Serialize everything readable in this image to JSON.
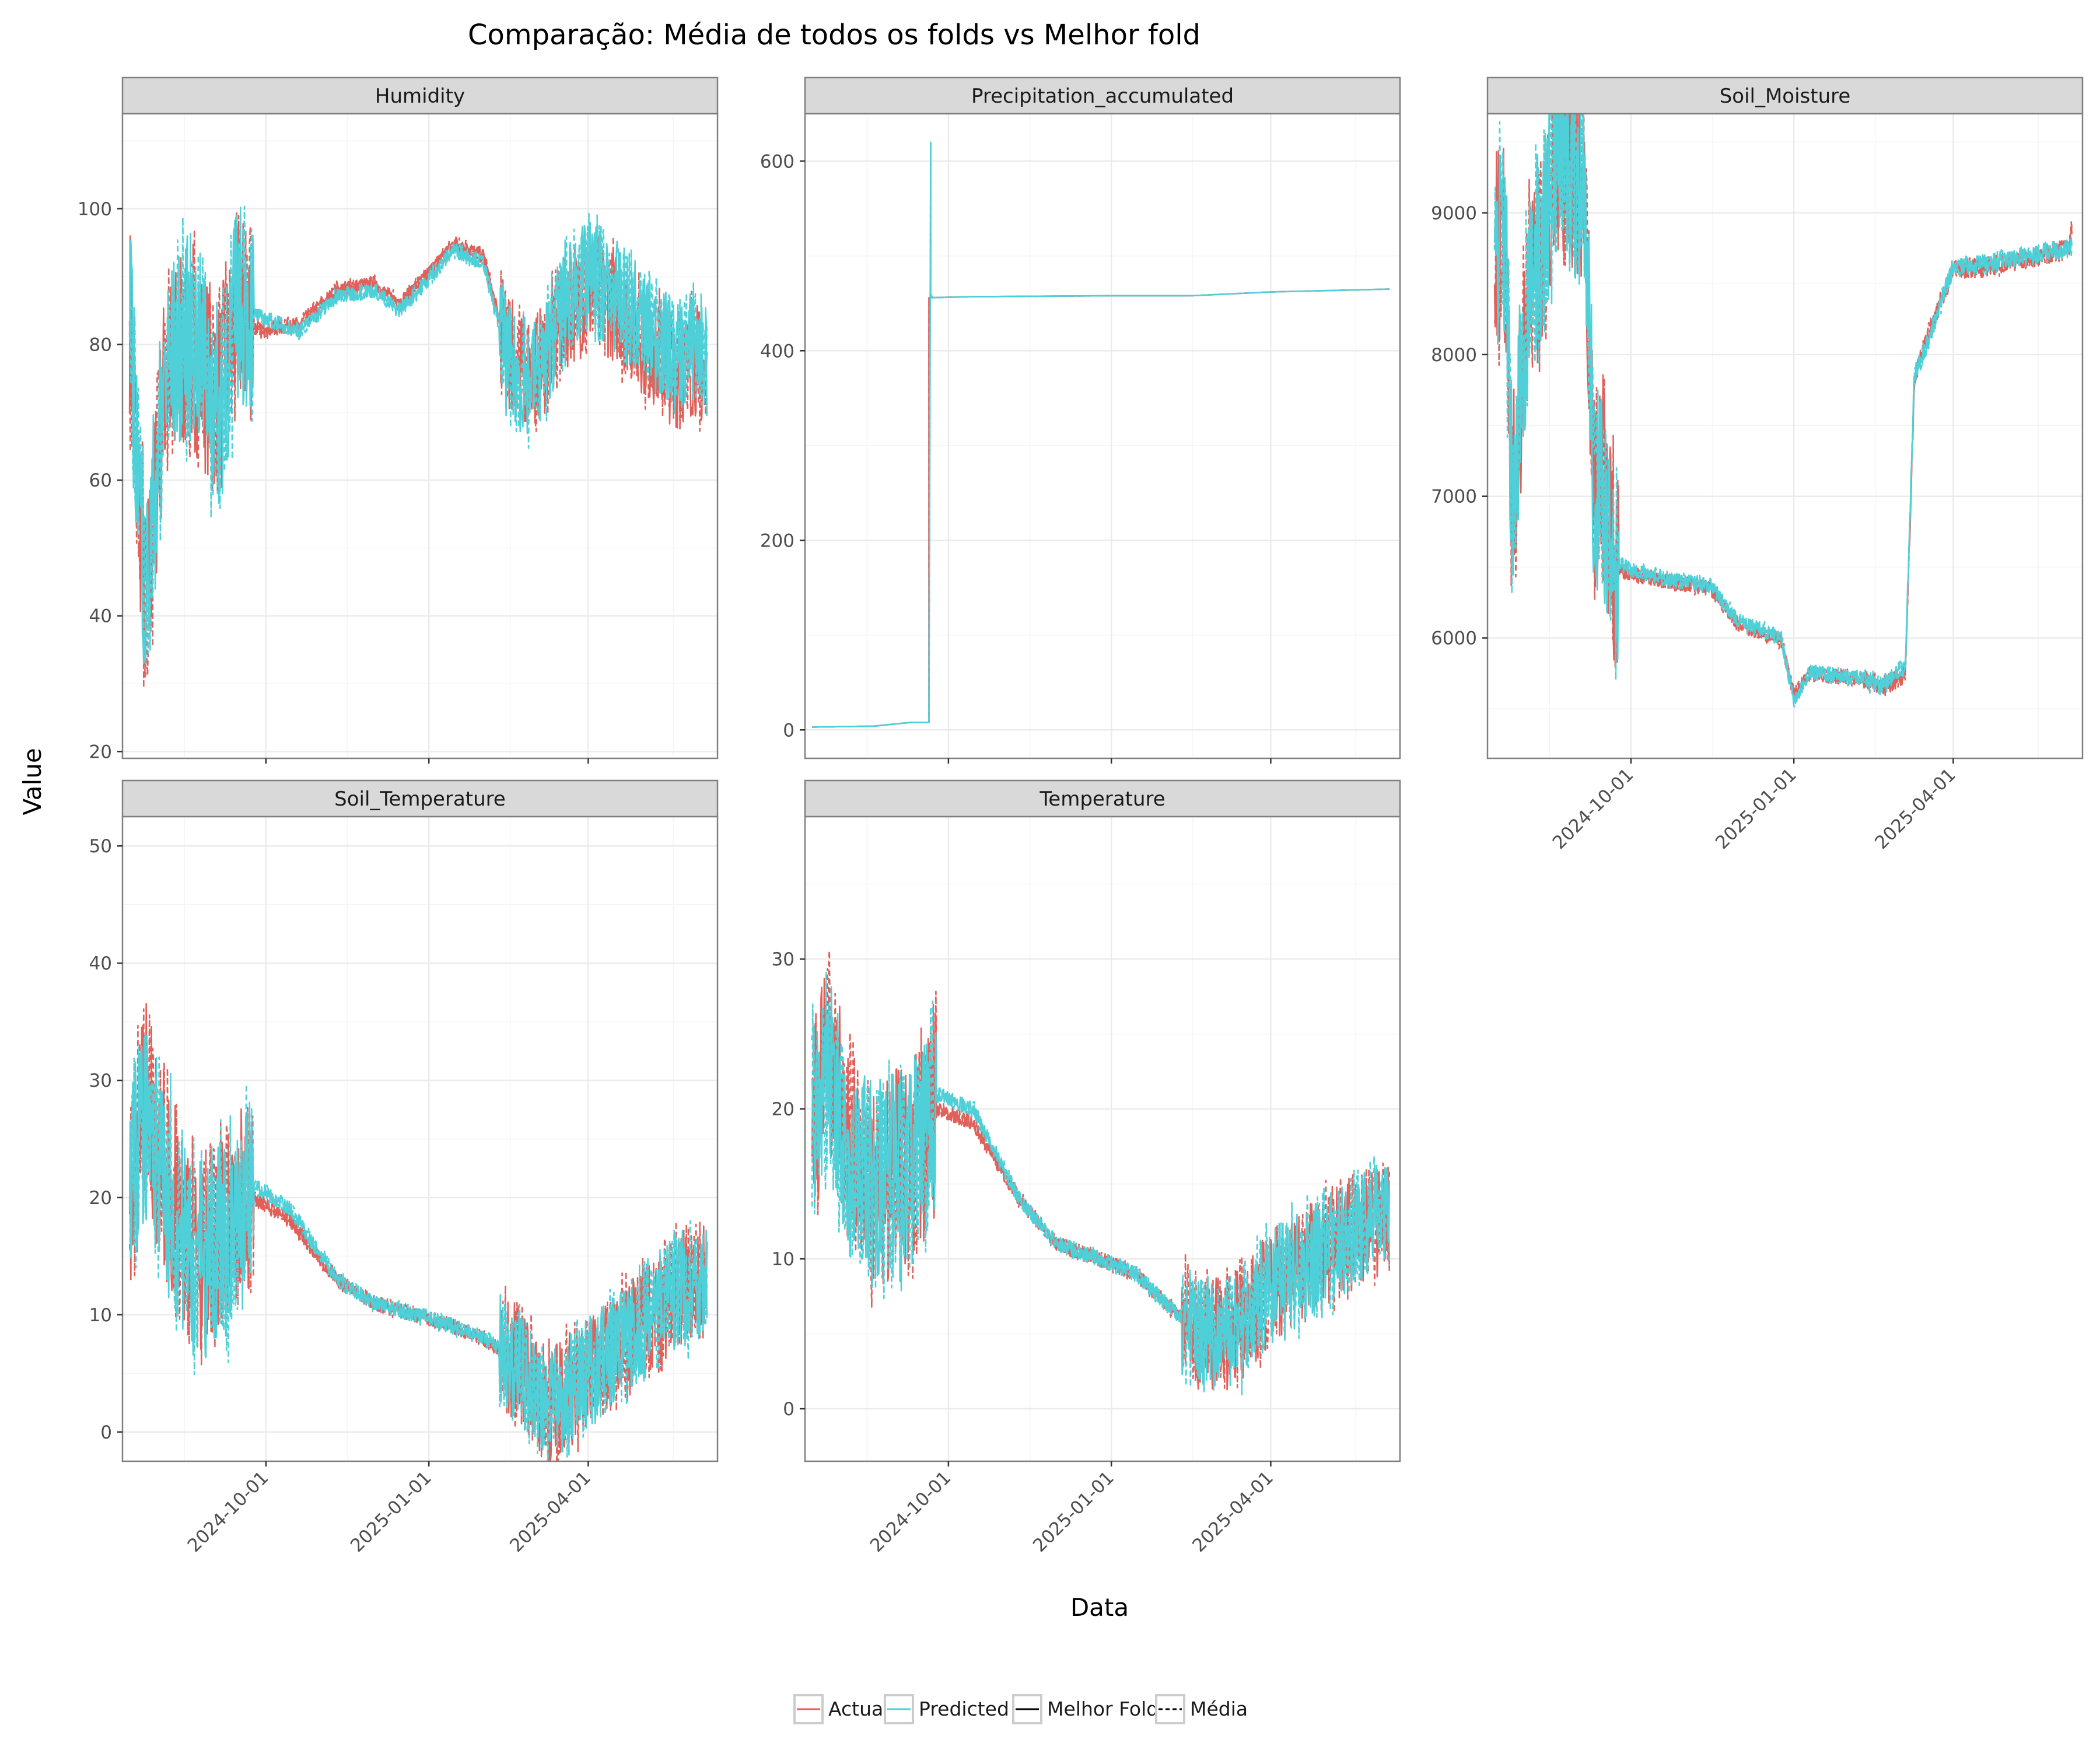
{
  "title": "Comparação: Média de todos os folds vs Melhor fold",
  "xlabel": "Data",
  "ylabel": "Value",
  "legend": {
    "placement": "bottom",
    "items": [
      {
        "label": "Actual",
        "color": "#e0605a",
        "dash": "solid"
      },
      {
        "label": "Predicted",
        "color": "#4fd0d8",
        "dash": "solid"
      },
      {
        "label": "Melhor Fold",
        "color": "#000000",
        "dash": "solid"
      },
      {
        "label": "Média",
        "color": "#000000",
        "dash": "dashed"
      }
    ]
  },
  "colors": {
    "actual": "#e0605a",
    "predicted": "#4fd0d8",
    "strip": "#d9d9d9",
    "grid": "#ebebeb",
    "border": "#7f7f7f"
  },
  "chart_data": [
    {
      "type": "line",
      "panel": "Humidity",
      "xlim": [
        "2024-07-12",
        "2025-06-13"
      ],
      "ylim": [
        19,
        114
      ],
      "yticks": [
        20,
        40,
        60,
        80,
        100
      ],
      "xticks": [
        "2024-10-01",
        "2025-01-01",
        "2025-04-01"
      ],
      "show_x_tick_labels": false,
      "style": "noisy",
      "series": [
        {
          "name": "Actual",
          "x": [
            "2024-07-16",
            "2024-07-25",
            "2024-08-05",
            "2024-08-20",
            "2024-09-05",
            "2024-09-15",
            "2024-09-28",
            "2024-10-20",
            "2024-11-10",
            "2024-12-01",
            "2024-12-15",
            "2024-12-30",
            "2025-01-15",
            "2025-02-01",
            "2025-02-14",
            "2025-02-20",
            "2025-03-05",
            "2025-03-20",
            "2025-04-05",
            "2025-04-20",
            "2025-05-05",
            "2025-05-20",
            "2025-06-01",
            "2025-06-07"
          ],
          "y": [
            85,
            40,
            75,
            80,
            72,
            85,
            82,
            83,
            88,
            89,
            86,
            90,
            95,
            93,
            79,
            76,
            77,
            85,
            88,
            85,
            80,
            76,
            78,
            75
          ]
        },
        {
          "name": "Predicted",
          "x": [
            "2024-07-16",
            "2024-07-25",
            "2024-08-05",
            "2024-08-20",
            "2024-09-05",
            "2024-09-15",
            "2024-09-28",
            "2024-10-20",
            "2024-11-10",
            "2024-12-01",
            "2024-12-15",
            "2024-12-30",
            "2025-01-15",
            "2025-02-01",
            "2025-02-14",
            "2025-02-20",
            "2025-03-05",
            "2025-03-20",
            "2025-04-05",
            "2025-04-20",
            "2025-05-05",
            "2025-05-20",
            "2025-06-01",
            "2025-06-07"
          ],
          "y": [
            84,
            42,
            76,
            82,
            70,
            86,
            84,
            82,
            87,
            88,
            85,
            89,
            94,
            92,
            78,
            75,
            76,
            88,
            90,
            86,
            82,
            78,
            80,
            77
          ]
        }
      ]
    },
    {
      "type": "line",
      "panel": "Precipitation_accumulated",
      "xlim": [
        "2024-07-12",
        "2025-06-13"
      ],
      "ylim": [
        -30,
        650
      ],
      "yticks": [
        0,
        200,
        400,
        600
      ],
      "xticks": [
        "2024-10-01",
        "2025-01-01",
        "2025-04-01"
      ],
      "show_x_tick_labels": false,
      "style": "smooth",
      "series": [
        {
          "name": "Actual",
          "x": [
            "2024-07-16",
            "2024-08-20",
            "2024-09-10",
            "2024-09-20",
            "2024-09-20",
            "2024-10-15",
            "2025-01-01",
            "2025-02-15",
            "2025-04-01",
            "2025-06-07"
          ],
          "y": [
            3,
            4,
            8,
            8,
            456,
            457,
            458,
            458,
            462,
            465
          ]
        },
        {
          "name": "Predicted",
          "x": [
            "2024-07-16",
            "2024-08-20",
            "2024-09-10",
            "2024-09-20",
            "2024-09-21",
            "2024-09-21",
            "2024-09-22",
            "2024-10-15",
            "2025-01-01",
            "2025-02-15",
            "2025-04-01",
            "2025-06-07"
          ],
          "y": [
            3,
            4,
            8,
            8,
            620,
            460,
            456,
            457,
            458,
            458,
            462,
            465
          ]
        }
      ]
    },
    {
      "type": "line",
      "panel": "Soil_Moisture",
      "xlim": [
        "2024-07-12",
        "2025-06-13"
      ],
      "ylim": [
        5150,
        9700
      ],
      "yticks": [
        6000,
        7000,
        8000,
        9000
      ],
      "xticks": [
        "2024-10-01",
        "2025-01-01",
        "2025-04-01"
      ],
      "show_x_tick_labels": true,
      "style": "stepnoise",
      "series": [
        {
          "name": "Actual",
          "x": [
            "2024-07-16",
            "2024-07-22",
            "2024-07-26",
            "2024-08-05",
            "2024-08-12",
            "2024-08-20",
            "2024-08-28",
            "2024-09-05",
            "2024-09-10",
            "2024-09-15",
            "2024-09-22",
            "2024-10-01",
            "2024-10-20",
            "2024-11-15",
            "2024-11-30",
            "2024-12-10",
            "2024-12-25",
            "2025-01-01",
            "2025-01-10",
            "2025-02-10",
            "2025-02-20",
            "2025-03-05",
            "2025-03-10",
            "2025-03-15",
            "2025-04-01",
            "2025-04-20",
            "2025-05-15",
            "2025-06-05",
            "2025-06-07"
          ],
          "y": [
            8700,
            8800,
            6900,
            8600,
            8700,
            9400,
            9350,
            9200,
            7000,
            7200,
            6500,
            6450,
            6400,
            6350,
            6100,
            6050,
            5980,
            5600,
            5750,
            5700,
            5650,
            5750,
            7800,
            8050,
            8600,
            8620,
            8680,
            8750,
            8900
          ]
        },
        {
          "name": "Predicted",
          "x": [
            "2024-07-16",
            "2024-07-22",
            "2024-07-26",
            "2024-08-05",
            "2024-08-12",
            "2024-08-20",
            "2024-08-28",
            "2024-09-05",
            "2024-09-10",
            "2024-09-15",
            "2024-09-22",
            "2024-10-01",
            "2024-10-20",
            "2024-11-15",
            "2024-11-30",
            "2024-12-10",
            "2024-12-25",
            "2025-01-01",
            "2025-01-10",
            "2025-02-10",
            "2025-02-20",
            "2025-03-05",
            "2025-03-10",
            "2025-03-15",
            "2025-04-01",
            "2025-04-20",
            "2025-05-15",
            "2025-06-05",
            "2025-06-07"
          ],
          "y": [
            8750,
            8850,
            6850,
            8650,
            8750,
            9450,
            9300,
            9150,
            7100,
            7000,
            6550,
            6480,
            6420,
            6370,
            6120,
            6070,
            6000,
            5550,
            5760,
            5710,
            5660,
            5800,
            7850,
            8000,
            8620,
            8640,
            8700,
            8760,
            8760
          ]
        }
      ]
    },
    {
      "type": "line",
      "panel": "Soil_Temperature",
      "xlim": [
        "2024-07-12",
        "2025-06-13"
      ],
      "ylim": [
        -2.5,
        52.5
      ],
      "yticks": [
        0,
        10,
        20,
        30,
        40,
        50
      ],
      "xticks": [
        "2024-10-01",
        "2025-01-01",
        "2025-04-01"
      ],
      "show_x_tick_labels": true,
      "style": "noisy",
      "series": [
        {
          "name": "Actual",
          "x": [
            "2024-07-16",
            "2024-07-25",
            "2024-08-05",
            "2024-08-20",
            "2024-09-10",
            "2024-09-25",
            "2024-10-15",
            "2024-11-10",
            "2024-12-01",
            "2024-12-25",
            "2025-01-15",
            "2025-02-01",
            "2025-02-20",
            "2025-03-10",
            "2025-04-01",
            "2025-04-25",
            "2025-05-20",
            "2025-06-07"
          ],
          "y": [
            20,
            28,
            22,
            15,
            18,
            20,
            18,
            13,
            11,
            10,
            9,
            8,
            6,
            2,
            5,
            8,
            12,
            13
          ]
        },
        {
          "name": "Predicted",
          "x": [
            "2024-07-16",
            "2024-07-25",
            "2024-08-05",
            "2024-08-20",
            "2024-09-10",
            "2024-09-25",
            "2024-10-15",
            "2024-11-10",
            "2024-12-01",
            "2024-12-25",
            "2025-01-15",
            "2025-02-01",
            "2025-02-20",
            "2025-03-10",
            "2025-04-01",
            "2025-04-25",
            "2025-05-20",
            "2025-06-07"
          ],
          "y": [
            21,
            27,
            21,
            14,
            17,
            21,
            19,
            13,
            11,
            10,
            9,
            8,
            6,
            2,
            5,
            8,
            12,
            13
          ]
        }
      ]
    },
    {
      "type": "line",
      "panel": "Temperature",
      "xlim": [
        "2024-07-12",
        "2025-06-13"
      ],
      "ylim": [
        -3.5,
        39.5
      ],
      "yticks": [
        0,
        10,
        20,
        30
      ],
      "xticks": [
        "2024-10-01",
        "2025-01-01",
        "2025-04-01"
      ],
      "show_x_tick_labels": true,
      "style": "noisy",
      "series": [
        {
          "name": "Actual",
          "x": [
            "2024-07-16",
            "2024-07-25",
            "2024-08-05",
            "2024-08-20",
            "2024-09-10",
            "2024-09-25",
            "2024-10-15",
            "2024-11-10",
            "2024-12-01",
            "2024-12-25",
            "2025-01-15",
            "2025-02-01",
            "2025-02-20",
            "2025-03-10",
            "2025-04-01",
            "2025-04-25",
            "2025-05-20",
            "2025-06-07"
          ],
          "y": [
            18,
            24,
            18,
            14,
            17,
            20,
            19,
            14,
            11,
            10,
            9,
            7,
            5,
            5,
            8,
            10,
            12,
            13
          ]
        },
        {
          "name": "Predicted",
          "x": [
            "2024-07-16",
            "2024-07-25",
            "2024-08-05",
            "2024-08-20",
            "2024-09-10",
            "2024-09-25",
            "2024-10-15",
            "2024-11-10",
            "2024-12-01",
            "2024-12-25",
            "2025-01-15",
            "2025-02-01",
            "2025-02-20",
            "2025-03-10",
            "2025-04-01",
            "2025-04-25",
            "2025-05-20",
            "2025-06-07"
          ],
          "y": [
            19,
            23,
            17,
            15,
            16,
            21,
            20,
            14,
            11,
            10,
            9,
            7,
            5,
            5,
            8,
            10,
            12,
            13
          ]
        }
      ]
    }
  ]
}
